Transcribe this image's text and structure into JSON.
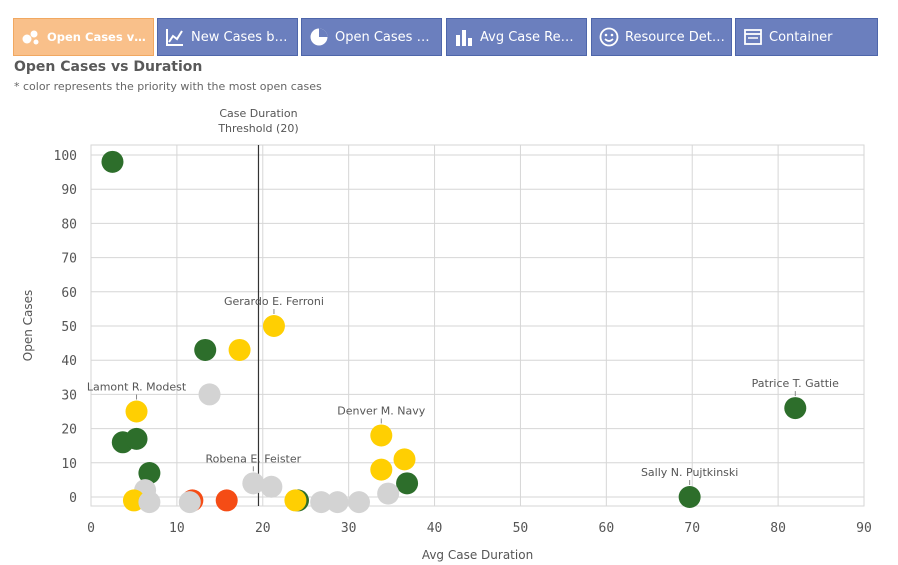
{
  "tabs": [
    {
      "label": "Open Cases vs Du...",
      "icon": "scatter-icon",
      "active": true
    },
    {
      "label": "New Cases by D...",
      "icon": "line-chart-icon",
      "active": false
    },
    {
      "label": "Open Cases by ...",
      "icon": "pie-chart-icon",
      "active": false
    },
    {
      "label": "Avg Case Resol...",
      "icon": "bar-chart-icon",
      "active": false
    },
    {
      "label": "Resource Details",
      "icon": "smiley-icon",
      "active": false
    },
    {
      "label": "Container",
      "icon": "container-icon",
      "active": false
    }
  ],
  "header": {
    "title": "Open Cases vs Duration",
    "subtitle": "* color represents the priority with the most open cases"
  },
  "chart_data": {
    "type": "scatter",
    "xlabel": "Avg Case Duration",
    "ylabel": "Open Cases",
    "xlim": [
      0,
      90
    ],
    "ylim": [
      0,
      100
    ],
    "xticks": [
      0,
      10,
      20,
      30,
      40,
      50,
      60,
      70,
      80,
      90
    ],
    "yticks": [
      0,
      10,
      20,
      30,
      40,
      50,
      60,
      70,
      80,
      90,
      100
    ],
    "grid": true,
    "threshold": {
      "x": 19.5,
      "label_line1": "Case Duration",
      "label_line2": "Threshold (20)"
    },
    "colors": {
      "green": "#2d6e2b",
      "yellow": "#ffcf02",
      "gray": "#d3d3d3",
      "red": "#f54c15"
    },
    "points": [
      {
        "x": 2.5,
        "y": 98,
        "color": "green"
      },
      {
        "x": 13.3,
        "y": 43,
        "color": "green"
      },
      {
        "x": 17.3,
        "y": 43,
        "color": "yellow"
      },
      {
        "x": 21.3,
        "y": 50,
        "color": "yellow",
        "label": "Gerardo E. Ferroni"
      },
      {
        "x": 13.8,
        "y": 30,
        "color": "gray"
      },
      {
        "x": 5.3,
        "y": 25,
        "color": "yellow",
        "label": "Lamont R. Modest"
      },
      {
        "x": 3.7,
        "y": 16,
        "color": "green"
      },
      {
        "x": 5.3,
        "y": 17,
        "color": "green"
      },
      {
        "x": 6.8,
        "y": 7,
        "color": "green"
      },
      {
        "x": 6.3,
        "y": 2,
        "color": "gray"
      },
      {
        "x": 5.0,
        "y": -1,
        "color": "yellow"
      },
      {
        "x": 6.8,
        "y": -1.5,
        "color": "gray"
      },
      {
        "x": 11.8,
        "y": -1,
        "color": "red"
      },
      {
        "x": 11.5,
        "y": -1.5,
        "color": "gray"
      },
      {
        "x": 15.8,
        "y": -1,
        "color": "red"
      },
      {
        "x": 18.9,
        "y": 4,
        "color": "gray",
        "label": "Robena E. Feister"
      },
      {
        "x": 21.0,
        "y": 3,
        "color": "gray"
      },
      {
        "x": 24.1,
        "y": -1,
        "color": "green"
      },
      {
        "x": 23.8,
        "y": -1,
        "color": "yellow"
      },
      {
        "x": 26.8,
        "y": -1.5,
        "color": "gray"
      },
      {
        "x": 28.7,
        "y": -1.5,
        "color": "gray"
      },
      {
        "x": 31.2,
        "y": -1.5,
        "color": "gray"
      },
      {
        "x": 33.8,
        "y": 18,
        "color": "yellow",
        "label": "Denver M. Navy"
      },
      {
        "x": 36.5,
        "y": 11,
        "color": "yellow"
      },
      {
        "x": 33.8,
        "y": 8,
        "color": "yellow"
      },
      {
        "x": 36.8,
        "y": 4,
        "color": "green"
      },
      {
        "x": 34.6,
        "y": 1,
        "color": "gray"
      },
      {
        "x": 69.7,
        "y": 0,
        "color": "green",
        "label": "Sally N. Pujtkinski"
      },
      {
        "x": 82.0,
        "y": 26,
        "color": "green",
        "label": "Patrice T. Gattie"
      }
    ]
  }
}
